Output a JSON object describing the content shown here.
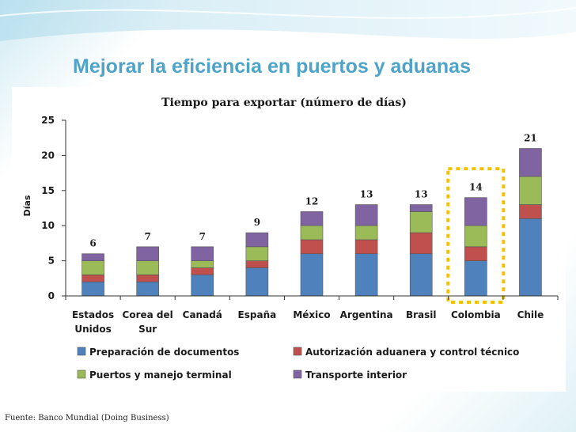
{
  "slide": {
    "title": "Mejorar la eficiencia en puertos y aduanas",
    "source": "Fuente: Banco Mundial (Doing Business)"
  },
  "colors": {
    "title": "#4fa3c9",
    "highlight": "#f2c200"
  },
  "chart_data": {
    "type": "bar",
    "stacked": true,
    "title": "Tiempo para exportar (número de días)",
    "xlabel": "",
    "ylabel": "Días",
    "ylim": [
      0,
      25
    ],
    "yticks": [
      0,
      5,
      10,
      15,
      20,
      25
    ],
    "grid": false,
    "legend_position": "bottom",
    "categories": [
      "Estados Unidos",
      "Corea del Sur",
      "Canadá",
      "España",
      "México",
      "Argentina",
      "Brasil",
      "Colombia",
      "Chile"
    ],
    "category_lines": [
      [
        "Estados",
        "Unidos"
      ],
      [
        "Corea del",
        "Sur"
      ],
      [
        "Canadá"
      ],
      [
        "España"
      ],
      [
        "México"
      ],
      [
        "Argentina"
      ],
      [
        "Brasil"
      ],
      [
        "Colombia"
      ],
      [
        "Chile"
      ]
    ],
    "series": [
      {
        "name": "Preparación de documentos",
        "color": "#4f81bd",
        "values": [
          2,
          2,
          3,
          4,
          6,
          6,
          6,
          5,
          11
        ]
      },
      {
        "name": "Autorización aduanera y control técnico",
        "color": "#c0504d",
        "values": [
          1,
          1,
          1,
          1,
          2,
          2,
          3,
          2,
          2
        ]
      },
      {
        "name": "Puertos y manejo terminal",
        "color": "#9bbb59",
        "values": [
          2,
          2,
          1,
          2,
          2,
          2,
          3,
          3,
          4
        ]
      },
      {
        "name": "Transporte interior",
        "color": "#8064a2",
        "values": [
          1,
          2,
          2,
          2,
          2,
          3,
          1,
          4,
          4
        ]
      }
    ],
    "totals": [
      6,
      7,
      7,
      9,
      12,
      13,
      13,
      14,
      21
    ],
    "highlighted_category": "Colombia"
  }
}
